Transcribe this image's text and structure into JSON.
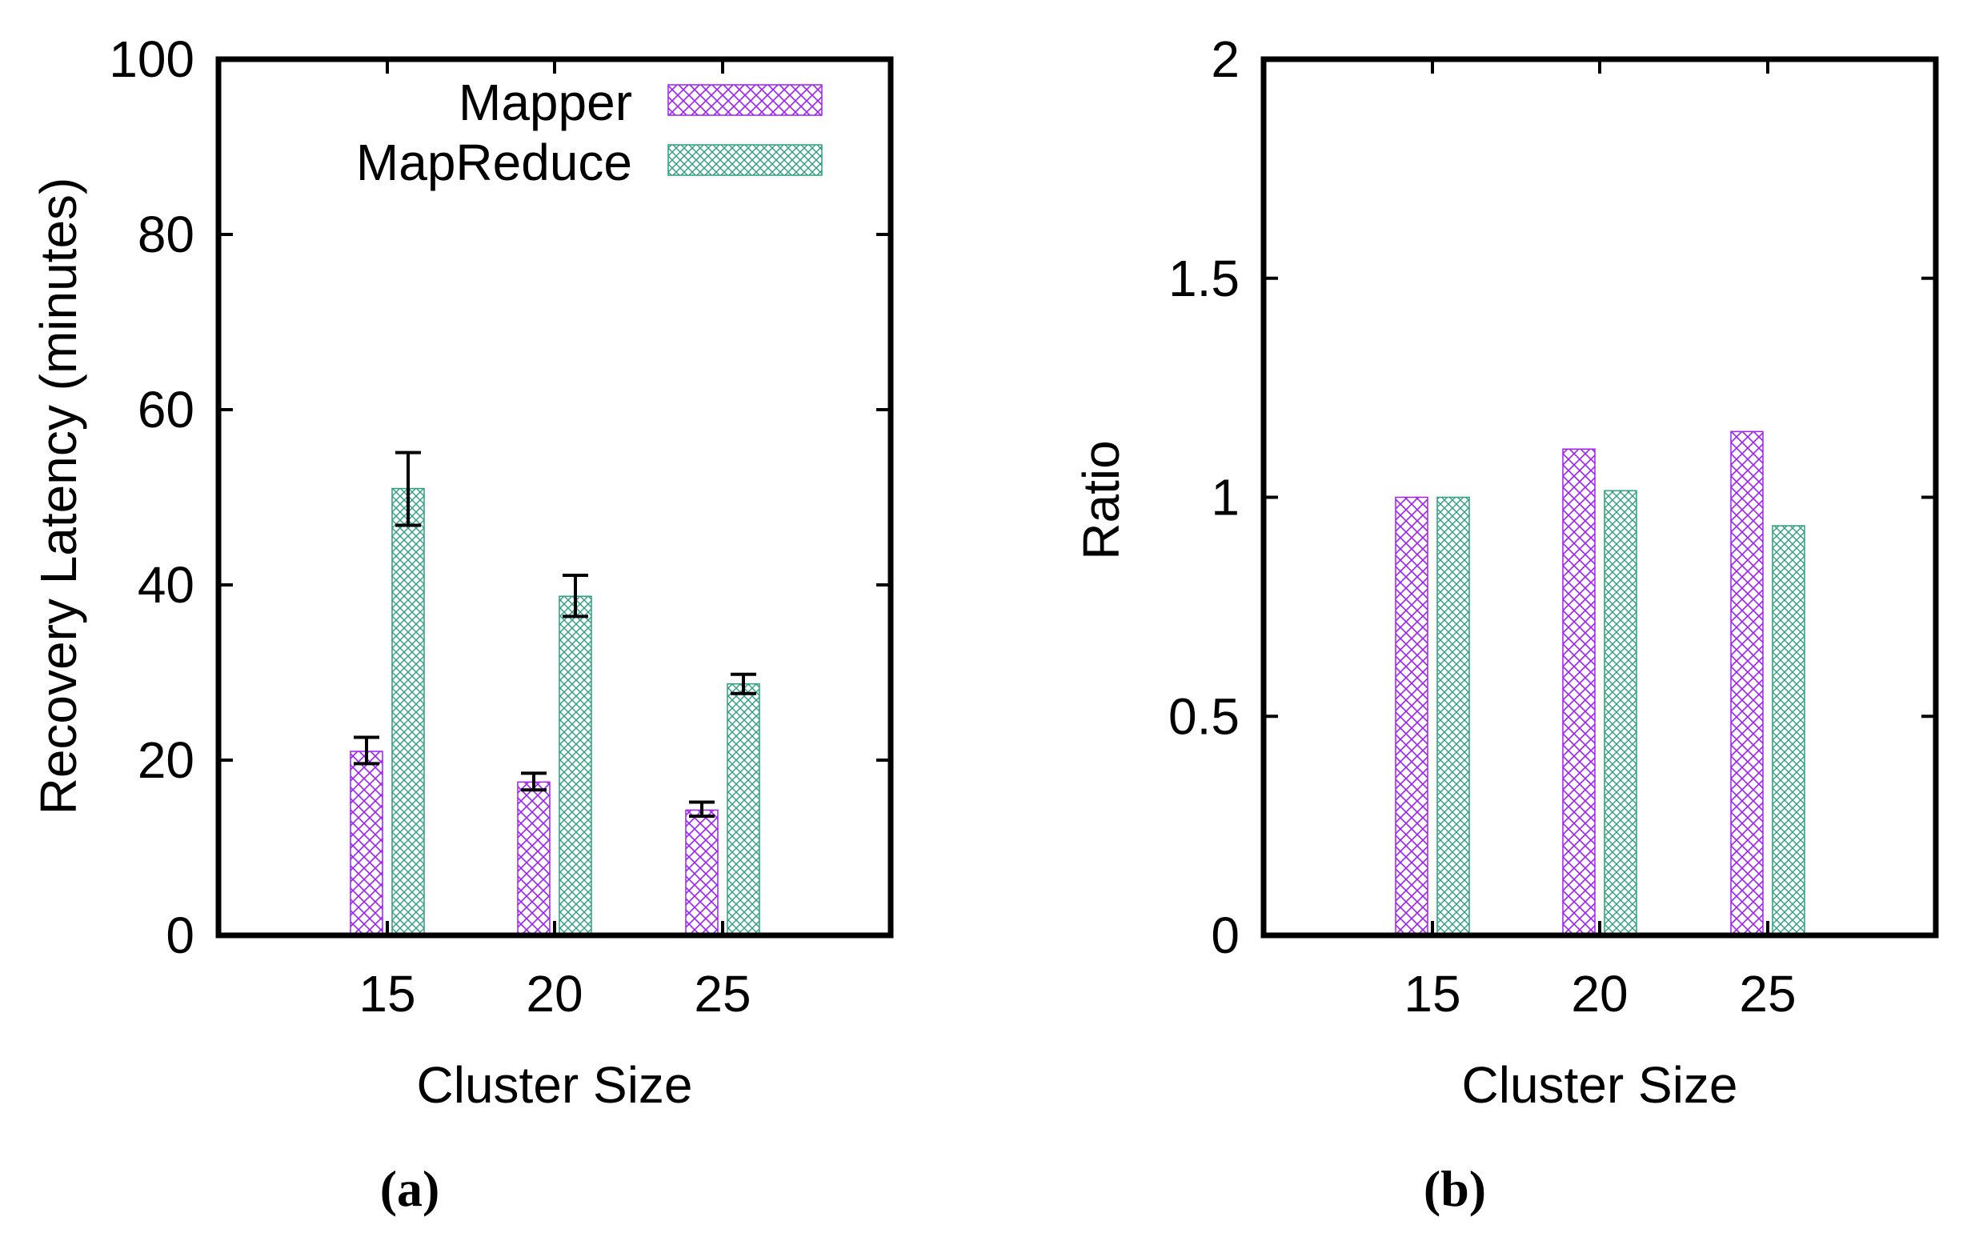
{
  "chart_data": [
    {
      "type": "bar",
      "panel": "(a)",
      "xlabel": "Cluster Size",
      "ylabel": "Recovery Latency (minutes)",
      "categories": [
        "15",
        "20",
        "25"
      ],
      "ylim": [
        0,
        100
      ],
      "yticks": [
        "0",
        "20",
        "40",
        "60",
        "80",
        "100"
      ],
      "series": [
        {
          "name": "Mapper",
          "values": [
            21,
            17.5,
            14.3
          ],
          "err_low": [
            19.6,
            16.6,
            13.6
          ],
          "err_high": [
            22.6,
            18.5,
            15.2
          ],
          "color": "#a020f0"
        },
        {
          "name": "MapReduce",
          "values": [
            51,
            38.7,
            28.7
          ],
          "err_low": [
            46.8,
            36.4,
            27.6
          ],
          "err_high": [
            55.1,
            41.1,
            29.8
          ],
          "color": "#2e9e7e"
        }
      ],
      "legend": "top-right",
      "caption": "(a)"
    },
    {
      "type": "bar",
      "panel": "(b)",
      "xlabel": "Cluster Size",
      "ylabel": "Ratio",
      "categories": [
        "15",
        "20",
        "25"
      ],
      "ylim": [
        0,
        2
      ],
      "yticks": [
        "0",
        "0.5",
        "1",
        "1.5",
        "2"
      ],
      "series": [
        {
          "name": "Mapper",
          "values": [
            1.0,
            1.11,
            1.15
          ],
          "color": "#a020f0"
        },
        {
          "name": "MapReduce",
          "values": [
            1.0,
            1.015,
            0.935
          ],
          "color": "#2e9e7e"
        }
      ],
      "caption": "(b)"
    }
  ]
}
